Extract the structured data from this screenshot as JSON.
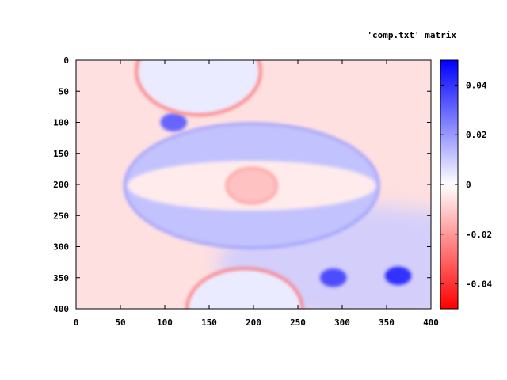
{
  "chart_data": {
    "type": "heatmap",
    "title": "'comp.txt' matrix",
    "xlabel": "",
    "ylabel": "",
    "xlim": [
      0,
      400
    ],
    "ylim": [
      400,
      0
    ],
    "x_ticks": [
      0,
      50,
      100,
      150,
      200,
      250,
      300,
      350,
      400
    ],
    "y_ticks": [
      0,
      50,
      100,
      150,
      200,
      250,
      300,
      350,
      400
    ],
    "colorbar": {
      "range": [
        -0.05,
        0.05
      ],
      "ticks": [
        0.04,
        0.02,
        0,
        -0.02,
        -0.04
      ],
      "tick_labels": [
        "0.04",
        "0.02",
        "0",
        "-0.02",
        "-0.04"
      ],
      "colors": {
        "low": "#ff0000",
        "mid": "#ffffff",
        "high": "#0000ff"
      }
    },
    "features": [
      {
        "shape": "ellipse",
        "cx": 198,
        "cy": 202,
        "rx": 143,
        "ry": 100,
        "value": 0.012,
        "rim_value": 0.02
      },
      {
        "shape": "ellipse",
        "cx": 198,
        "cy": 202,
        "rx": 140,
        "ry": 40,
        "value": -0.004
      },
      {
        "shape": "circle",
        "cx": 198,
        "cy": 202,
        "r": 28,
        "value": -0.012,
        "rim_value": -0.02
      },
      {
        "shape": "circle",
        "cx": 110,
        "cy": 100,
        "r": 15,
        "value": 0.03
      },
      {
        "shape": "circle",
        "cx": 138,
        "cy": 18,
        "r": 70,
        "value": 0.004,
        "rim_value": -0.03
      },
      {
        "shape": "circle",
        "cx": 190,
        "cy": 400,
        "r": 65,
        "value": 0.004,
        "rim_value": -0.03
      },
      {
        "shape": "circle",
        "cx": 290,
        "cy": 350,
        "r": 15,
        "value": 0.035
      },
      {
        "shape": "circle",
        "cx": 363,
        "cy": 347,
        "r": 15,
        "value": 0.04
      }
    ],
    "regions": [
      {
        "area": "left and top background",
        "value": -0.006
      },
      {
        "area": "lower right",
        "value": 0.01
      }
    ]
  }
}
